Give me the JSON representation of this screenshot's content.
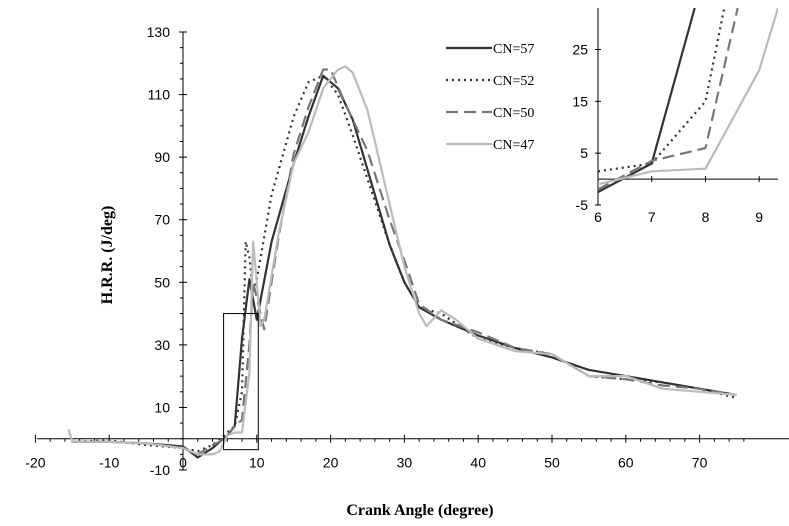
{
  "chart_data": [
    {
      "type": "line",
      "title": "",
      "xlabel": "Crank Angle (degree)",
      "ylabel": "H.R.R. (J/deg)",
      "xlim": [
        -20,
        78
      ],
      "ylim": [
        -10,
        130
      ],
      "xticks": [
        -20,
        -10,
        0,
        10,
        20,
        30,
        40,
        50,
        60,
        70
      ],
      "yticks": [
        -10,
        10,
        30,
        50,
        70,
        90,
        110,
        130
      ],
      "legend_position": "top-right",
      "highlight_box": {
        "x": [
          5.5,
          10.2
        ],
        "y": [
          -3.5,
          40
        ]
      },
      "series": [
        {
          "name": "CN=57",
          "color": "#333333",
          "dash": "solid",
          "x": [
            -15,
            -10,
            -5,
            0,
            2,
            4,
            5,
            6,
            7,
            8,
            9,
            10,
            12,
            15,
            17,
            19,
            21,
            23,
            25,
            28,
            30,
            32,
            35,
            40,
            45,
            50,
            55,
            60,
            65,
            70,
            75
          ],
          "y": [
            -1,
            -1,
            -1.5,
            -2.5,
            -6,
            -3,
            -1,
            1,
            4,
            32,
            51,
            38,
            63,
            88,
            103,
            116,
            112,
            102,
            86,
            62,
            50,
            42,
            38,
            33,
            29,
            26,
            22,
            20,
            18,
            16,
            14
          ]
        },
        {
          "name": "CN=52",
          "color": "#333333",
          "dash": "2,4",
          "x": [
            -15,
            -10,
            -5,
            0,
            2,
            4,
            5,
            6,
            7,
            8,
            8.5,
            9,
            9.5,
            10,
            12,
            15,
            17,
            19,
            21,
            23,
            25,
            28,
            30,
            32,
            35,
            40,
            45,
            50,
            55,
            60,
            65,
            70,
            75
          ],
          "y": [
            -1,
            -0.5,
            -2,
            -3,
            -4,
            -2,
            0,
            2,
            4,
            15,
            63,
            58,
            47,
            51,
            78,
            103,
            114,
            116,
            110,
            97,
            83,
            62,
            50,
            42,
            40,
            32,
            29,
            27,
            20,
            19,
            18,
            16,
            13
          ]
        },
        {
          "name": "CN=50",
          "color": "#777777",
          "dash": "12,6",
          "x": [
            -15,
            -10,
            -5,
            0,
            2,
            4,
            5,
            6,
            7,
            8,
            9,
            9.5,
            10,
            11,
            13,
            15,
            17,
            19,
            20,
            22,
            25,
            28,
            30,
            32,
            35,
            40,
            45,
            50,
            55,
            60,
            65,
            70,
            75
          ],
          "y": [
            -1,
            -1,
            -1.5,
            -3,
            -5,
            -2,
            -1,
            1,
            4,
            6,
            30,
            50,
            45,
            35,
            65,
            91,
            106,
            118,
            118,
            107,
            92,
            70,
            57,
            43,
            38,
            34,
            29,
            27,
            20,
            19,
            17,
            16,
            14
          ]
        },
        {
          "name": "CN=47",
          "color": "#bbbbbb",
          "dash": "solid",
          "x": [
            -15.5,
            -15,
            -10,
            -5,
            0,
            2,
            4,
            5,
            6,
            7,
            8,
            9,
            9.5,
            10,
            10.5,
            11,
            13,
            15,
            17,
            19,
            21,
            22,
            23,
            25,
            28,
            30,
            32,
            33,
            35,
            37,
            40,
            45,
            50,
            55,
            60,
            65,
            70,
            75
          ],
          "y": [
            3,
            -1,
            -1,
            -1.5,
            -3,
            -5,
            -5,
            -4,
            1,
            2,
            2,
            21,
            63,
            50,
            36,
            38,
            66,
            88,
            98,
            112,
            118,
            119,
            117,
            105,
            75,
            55,
            40,
            36,
            41,
            38,
            32,
            28,
            27,
            20,
            20,
            16,
            15,
            14
          ]
        }
      ]
    },
    {
      "type": "line",
      "title": "",
      "xlabel": "",
      "ylabel": "",
      "xlim": [
        6,
        9.35
      ],
      "ylim": [
        -5,
        33
      ],
      "xticks": [
        6,
        7,
        8,
        9
      ],
      "yticks": [
        -5,
        5,
        15,
        25
      ],
      "series": [
        {
          "name": "CN=57",
          "color": "#333333",
          "dash": "solid",
          "x": [
            6,
            7,
            7.8
          ],
          "y": [
            -2.5,
            3,
            33
          ]
        },
        {
          "name": "CN=52",
          "color": "#333333",
          "dash": "2,4",
          "x": [
            6,
            7,
            8,
            8.35
          ],
          "y": [
            1.5,
            3,
            15,
            33
          ]
        },
        {
          "name": "CN=50",
          "color": "#777777",
          "dash": "12,6",
          "x": [
            6,
            7,
            8,
            8.6
          ],
          "y": [
            -2,
            3.5,
            6,
            33
          ]
        },
        {
          "name": "CN=47",
          "color": "#bbbbbb",
          "dash": "solid",
          "x": [
            6,
            7,
            8,
            9,
            9.35
          ],
          "y": [
            -1,
            1.5,
            2,
            21,
            33
          ]
        }
      ]
    }
  ]
}
